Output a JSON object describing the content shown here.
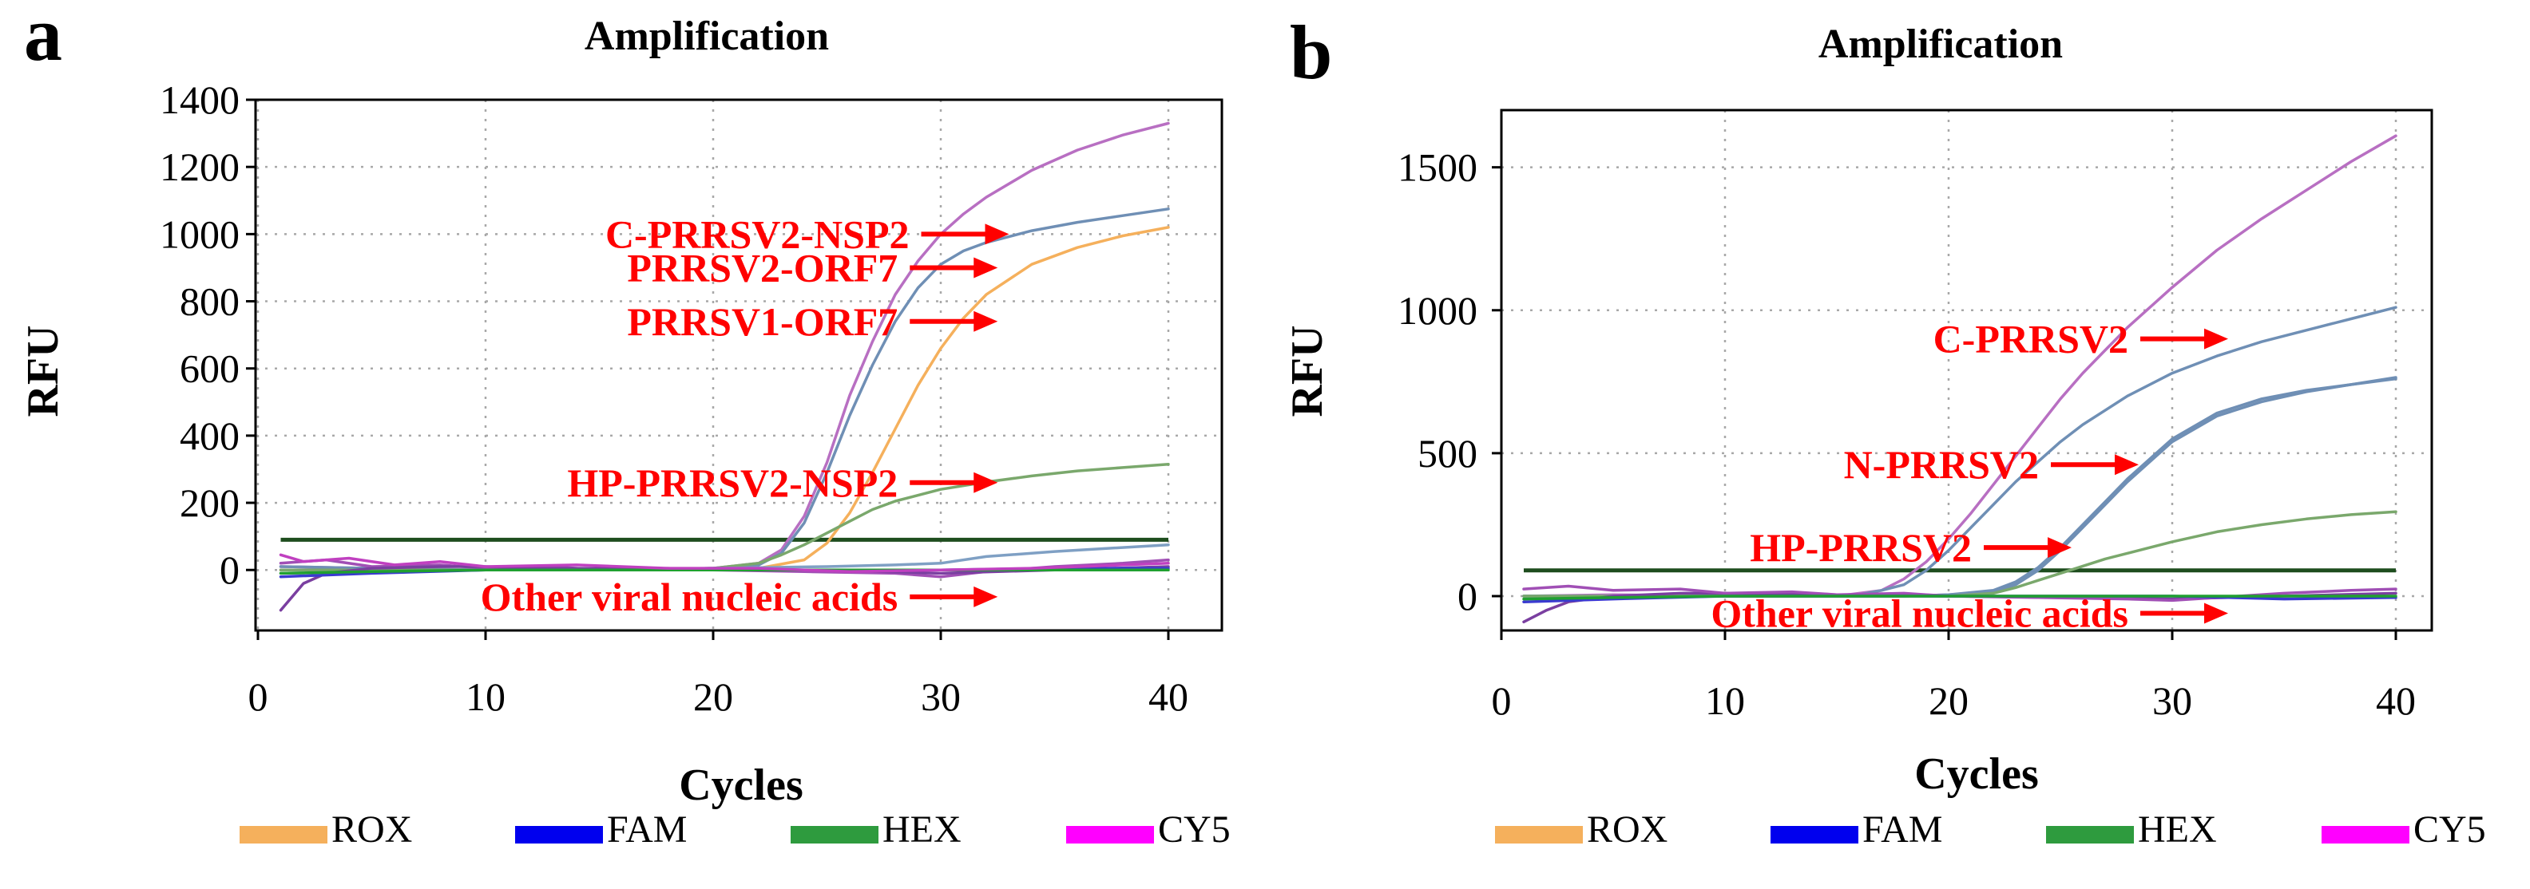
{
  "colors": {
    "ROX": "#f5b05c",
    "FAM": "#0000ee",
    "HEX": "#2e9b3e",
    "CY5": "#ff00ff",
    "annotation": "#ff0000",
    "threshold": "#1e4d1e"
  },
  "legend": [
    {
      "label": "ROX",
      "color_key": "ROX"
    },
    {
      "label": "FAM",
      "color_key": "FAM"
    },
    {
      "label": "HEX",
      "color_key": "HEX"
    },
    {
      "label": "CY5",
      "color_key": "CY5"
    }
  ],
  "chart_data": [
    {
      "type": "line",
      "panel_letter": "a",
      "title": "Amplification",
      "xlabel": "Cycles",
      "ylabel": "RFU",
      "xlim": [
        0,
        42
      ],
      "ylim": [
        -180,
        1400
      ],
      "xticks": [
        0,
        10,
        20,
        30,
        40
      ],
      "yticks": [
        0,
        200,
        400,
        600,
        800,
        1000,
        1200,
        1400
      ],
      "grid": true,
      "threshold": 90,
      "series": [
        {
          "color": "#b86fc2",
          "x": [
            1,
            5,
            10,
            15,
            20,
            22,
            23,
            24,
            25,
            26,
            27,
            28,
            29,
            30,
            31,
            32,
            34,
            36,
            38,
            40
          ],
          "y": [
            10,
            5,
            0,
            0,
            5,
            20,
            60,
            160,
            320,
            520,
            680,
            820,
            920,
            1000,
            1060,
            1110,
            1190,
            1250,
            1295,
            1330
          ]
        },
        {
          "color": "#6f8fb5",
          "x": [
            1,
            5,
            10,
            15,
            20,
            22,
            23,
            24,
            25,
            26,
            27,
            28,
            29,
            30,
            31,
            32,
            34,
            36,
            38,
            40
          ],
          "y": [
            10,
            5,
            0,
            0,
            5,
            15,
            50,
            140,
            290,
            460,
            610,
            740,
            840,
            910,
            950,
            975,
            1010,
            1035,
            1055,
            1075
          ]
        },
        {
          "color": "#f5b05c",
          "x": [
            1,
            5,
            10,
            15,
            20,
            22,
            24,
            25,
            26,
            27,
            28,
            29,
            30,
            31,
            32,
            34,
            36,
            38,
            40
          ],
          "y": [
            0,
            0,
            0,
            0,
            0,
            5,
            30,
            80,
            170,
            290,
            420,
            550,
            660,
            750,
            820,
            910,
            960,
            995,
            1020
          ]
        },
        {
          "color": "#7aa86c",
          "x": [
            1,
            5,
            10,
            15,
            20,
            22,
            23,
            24,
            25,
            26,
            27,
            28,
            30,
            32,
            34,
            36,
            38,
            40
          ],
          "y": [
            0,
            0,
            0,
            0,
            5,
            20,
            45,
            75,
            110,
            145,
            180,
            205,
            240,
            262,
            280,
            295,
            305,
            315
          ]
        },
        {
          "color": "#7fa0c4",
          "x": [
            1,
            10,
            20,
            25,
            28,
            30,
            32,
            35,
            40
          ],
          "y": [
            -10,
            0,
            5,
            10,
            15,
            20,
            40,
            55,
            75
          ]
        },
        {
          "color": "#a04fb5",
          "x": [
            1,
            3,
            5,
            8,
            10,
            13,
            15,
            18,
            20,
            24,
            28,
            30,
            32,
            35,
            38,
            40
          ],
          "y": [
            20,
            30,
            10,
            15,
            5,
            10,
            0,
            5,
            0,
            -5,
            -10,
            -20,
            -5,
            10,
            20,
            30
          ]
        },
        {
          "color": "#7a3fa0",
          "x": [
            1,
            2,
            3,
            5,
            8,
            10,
            12,
            15,
            20,
            25,
            30,
            35,
            40
          ],
          "y": [
            -120,
            -40,
            -10,
            5,
            10,
            10,
            5,
            5,
            0,
            0,
            -10,
            0,
            10
          ]
        },
        {
          "color": "#3a3ad0",
          "x": [
            1,
            5,
            10,
            15,
            20,
            25,
            30,
            35,
            40
          ],
          "y": [
            -20,
            -10,
            0,
            0,
            0,
            0,
            0,
            5,
            5
          ]
        },
        {
          "color": "#20a030",
          "x": [
            1,
            5,
            10,
            15,
            20,
            25,
            30,
            35,
            40
          ],
          "y": [
            -10,
            -5,
            0,
            0,
            0,
            0,
            0,
            0,
            0
          ]
        },
        {
          "color": "#c040c0",
          "x": [
            1,
            2,
            4,
            6,
            8,
            10,
            14,
            18,
            22,
            26,
            30,
            34,
            38,
            40
          ],
          "y": [
            45,
            25,
            35,
            15,
            25,
            10,
            15,
            5,
            5,
            -5,
            0,
            5,
            15,
            20
          ]
        }
      ],
      "annotations": [
        {
          "text": "C-PRRSV2-NSP2",
          "x": 33,
          "y": 1000
        },
        {
          "text": "PRRSV2-ORF7",
          "x": 32.5,
          "y": 900
        },
        {
          "text": "PRRSV1-ORF7",
          "x": 32.5,
          "y": 740
        },
        {
          "text": "HP-PRRSV2-NSP2",
          "x": 32.5,
          "y": 260
        },
        {
          "text": "Other viral nucleic acids",
          "x": 32.5,
          "y": -80
        }
      ]
    },
    {
      "type": "line",
      "panel_letter": "b",
      "title": "Amplification",
      "xlabel": "Cycles",
      "ylabel": "RFU",
      "xlim": [
        0,
        42
      ],
      "ylim": [
        -120,
        1700
      ],
      "xticks": [
        0,
        10,
        20,
        30,
        40
      ],
      "yticks": [
        0,
        500,
        1000,
        1500
      ],
      "grid": true,
      "threshold": 90,
      "series": [
        {
          "color": "#b86fc2",
          "x": [
            1,
            5,
            10,
            15,
            17,
            18,
            19,
            20,
            21,
            22,
            23,
            24,
            25,
            26,
            27,
            28,
            30,
            32,
            34,
            36,
            38,
            40
          ],
          "y": [
            0,
            5,
            0,
            0,
            20,
            60,
            120,
            200,
            290,
            390,
            490,
            590,
            690,
            780,
            860,
            940,
            1080,
            1210,
            1320,
            1420,
            1520,
            1610
          ]
        },
        {
          "color": "#6f8fb5",
          "x": [
            1,
            5,
            10,
            15,
            16,
            17,
            18,
            19,
            20,
            21,
            22,
            23,
            24,
            25,
            26,
            27,
            28,
            30,
            32,
            34,
            36,
            38,
            40
          ],
          "y": [
            0,
            0,
            0,
            0,
            5,
            20,
            40,
            90,
            160,
            240,
            320,
            400,
            470,
            540,
            600,
            650,
            700,
            780,
            840,
            890,
            930,
            970,
            1010
          ]
        },
        {
          "color": "#6f8fb5",
          "x": [
            1,
            5,
            10,
            15,
            18,
            20,
            22,
            23,
            24,
            25,
            26,
            27,
            28,
            29,
            30,
            32,
            34,
            36,
            38,
            40
          ],
          "y": [
            0,
            0,
            0,
            0,
            0,
            5,
            20,
            50,
            100,
            170,
            250,
            330,
            410,
            480,
            550,
            640,
            690,
            720,
            740,
            765
          ]
        },
        {
          "color": "#6f8fb5",
          "x": [
            1,
            5,
            10,
            15,
            18,
            20,
            22,
            23,
            24,
            25,
            26,
            27,
            28,
            29,
            30,
            32,
            34,
            36,
            38,
            40
          ],
          "y": [
            0,
            0,
            0,
            0,
            0,
            5,
            15,
            40,
            90,
            160,
            240,
            320,
            400,
            470,
            540,
            630,
            680,
            715,
            740,
            760
          ]
        },
        {
          "color": "#7aa86c",
          "x": [
            1,
            5,
            10,
            15,
            20,
            22,
            23,
            24,
            25,
            26,
            27,
            28,
            30,
            32,
            34,
            36,
            38,
            40
          ],
          "y": [
            0,
            0,
            0,
            0,
            0,
            10,
            30,
            55,
            80,
            105,
            130,
            150,
            190,
            225,
            250,
            270,
            285,
            295
          ]
        },
        {
          "color": "#7a3fa0",
          "x": [
            1,
            2,
            3,
            5,
            8,
            10,
            15,
            20,
            25,
            30,
            35,
            40
          ],
          "y": [
            -90,
            -50,
            -20,
            0,
            10,
            10,
            5,
            0,
            -5,
            -10,
            0,
            10
          ]
        },
        {
          "color": "#a04fb5",
          "x": [
            1,
            3,
            5,
            8,
            10,
            13,
            15,
            18,
            20,
            24,
            28,
            30,
            32,
            35,
            38,
            40
          ],
          "y": [
            25,
            35,
            20,
            25,
            10,
            15,
            5,
            10,
            0,
            -5,
            -10,
            -15,
            -5,
            10,
            20,
            25
          ]
        },
        {
          "color": "#3a3ad0",
          "x": [
            1,
            5,
            10,
            15,
            20,
            25,
            30,
            35,
            40
          ],
          "y": [
            -20,
            -10,
            0,
            0,
            0,
            0,
            0,
            -10,
            -5
          ]
        },
        {
          "color": "#20a030",
          "x": [
            1,
            5,
            10,
            15,
            20,
            25,
            30,
            35,
            40
          ],
          "y": [
            -10,
            -5,
            0,
            0,
            0,
            0,
            0,
            0,
            0
          ]
        }
      ],
      "annotations": [
        {
          "text": "C-PRRSV2",
          "x": 32.5,
          "y": 900
        },
        {
          "text": "N-PRRSV2",
          "x": 28.5,
          "y": 460
        },
        {
          "text": "HP-PRRSV2",
          "x": 25.5,
          "y": 170
        },
        {
          "text": "Other viral nucleic acids",
          "x": 32.5,
          "y": -60
        }
      ]
    }
  ]
}
